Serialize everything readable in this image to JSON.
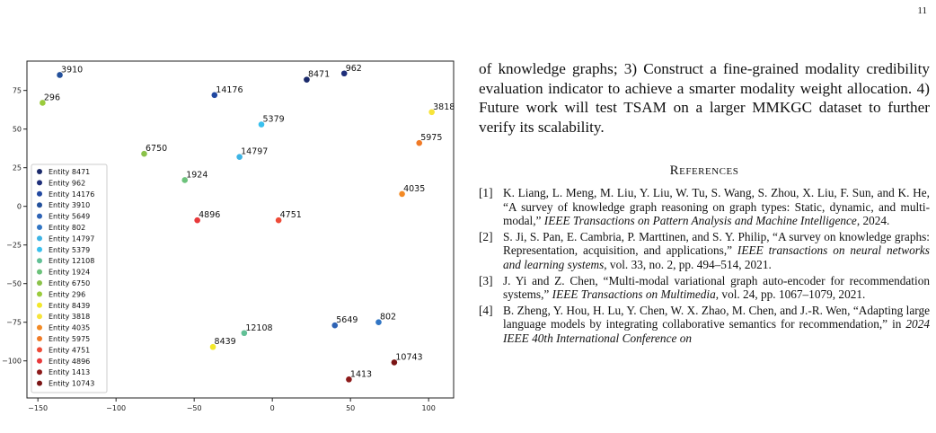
{
  "page_number": "11",
  "body_text": "of knowledge graphs; 3) Construct a fine-grained modality credibility evaluation indicator to achieve a smarter modality weight allocation. 4) Future work will test TSAM on a larger MMKGC dataset to further verify its scalability.",
  "references_heading": "References",
  "references": [
    {
      "num": "[1]",
      "pre": "K. Liang, L. Meng, M. Liu, Y. Liu, W. Tu, S. Wang, S. Zhou, X. Liu, F. Sun, and K. He, “A survey of knowledge graph reasoning on graph types: Static, dynamic, and multi-modal,” ",
      "venue": "IEEE Transactions on Pattern Analysis and Machine Intelligence",
      "post": ", 2024."
    },
    {
      "num": "[2]",
      "pre": "S. Ji, S. Pan, E. Cambria, P. Marttinen, and S. Y. Philip, “A survey on knowledge graphs: Representation, acquisition, and applications,” ",
      "venue": "IEEE transactions on neural networks and learning systems",
      "post": ", vol. 33, no. 2, pp. 494–514, 2021."
    },
    {
      "num": "[3]",
      "pre": "J. Yi and Z. Chen, “Multi-modal variational graph auto-encoder for recommendation systems,” ",
      "venue": "IEEE Transactions on Multimedia",
      "post": ", vol. 24, pp. 1067–1079, 2021."
    },
    {
      "num": "[4]",
      "pre": "B. Zheng, Y. Hou, H. Lu, Y. Chen, W. X. Zhao, M. Chen, and J.-R. Wen, “Adapting large language models by integrating collaborative semantics for recommendation,” in ",
      "venue": "2024 IEEE 40th International Conference on",
      "post": ""
    }
  ],
  "chart_data": {
    "type": "scatter",
    "xlim": [
      -157,
      116
    ],
    "ylim": [
      -124,
      94
    ],
    "xticks": [
      -150,
      -100,
      -50,
      0,
      50,
      100
    ],
    "yticks": [
      75,
      50,
      25,
      0,
      -25,
      -50,
      -75,
      -100
    ],
    "grid": false,
    "legend_placement": "lower-left",
    "points": [
      {
        "label": "8471",
        "x": 22,
        "y": 82,
        "color": "#1b2a6b"
      },
      {
        "label": "962",
        "x": 46,
        "y": 86,
        "color": "#1f2f7a"
      },
      {
        "label": "14176",
        "x": -37,
        "y": 72,
        "color": "#2148a0"
      },
      {
        "label": "3910",
        "x": -136,
        "y": 85,
        "color": "#23509b"
      },
      {
        "label": "5649",
        "x": 40,
        "y": -77,
        "color": "#2e63b5"
      },
      {
        "label": "802",
        "x": 68,
        "y": -75,
        "color": "#3175c4"
      },
      {
        "label": "14797",
        "x": -21,
        "y": 32,
        "color": "#3db4e5"
      },
      {
        "label": "5379",
        "x": -7,
        "y": 53,
        "color": "#39c0ee"
      },
      {
        "label": "12108",
        "x": -18,
        "y": -82,
        "color": "#62c096"
      },
      {
        "label": "1924",
        "x": -56,
        "y": 17,
        "color": "#6cc27b"
      },
      {
        "label": "6750",
        "x": -82,
        "y": 34,
        "color": "#8bc24a"
      },
      {
        "label": "296",
        "x": -147,
        "y": 67,
        "color": "#9acb3c"
      },
      {
        "label": "8439",
        "x": -38,
        "y": -91,
        "color": "#f2e72a"
      },
      {
        "label": "3818",
        "x": 102,
        "y": 61,
        "color": "#f7e43a"
      },
      {
        "label": "4035",
        "x": 83,
        "y": 8,
        "color": "#f38a25"
      },
      {
        "label": "5975",
        "x": 94,
        "y": 41,
        "color": "#f07a26"
      },
      {
        "label": "4751",
        "x": 4,
        "y": -9,
        "color": "#ee4b38"
      },
      {
        "label": "4896",
        "x": -48,
        "y": -9,
        "color": "#e8393b"
      },
      {
        "label": "1413",
        "x": 49,
        "y": -112,
        "color": "#8d1a1a"
      },
      {
        "label": "10743",
        "x": 78,
        "y": -101,
        "color": "#7a1414"
      }
    ],
    "legend": [
      "Entity 8471",
      "Entity 962",
      "Entity 14176",
      "Entity 3910",
      "Entity 5649",
      "Entity 802",
      "Entity 14797",
      "Entity 5379",
      "Entity 12108",
      "Entity 1924",
      "Entity 6750",
      "Entity 296",
      "Entity 8439",
      "Entity 3818",
      "Entity 4035",
      "Entity 5975",
      "Entity 4751",
      "Entity 4896",
      "Entity 1413",
      "Entity 10743"
    ]
  }
}
